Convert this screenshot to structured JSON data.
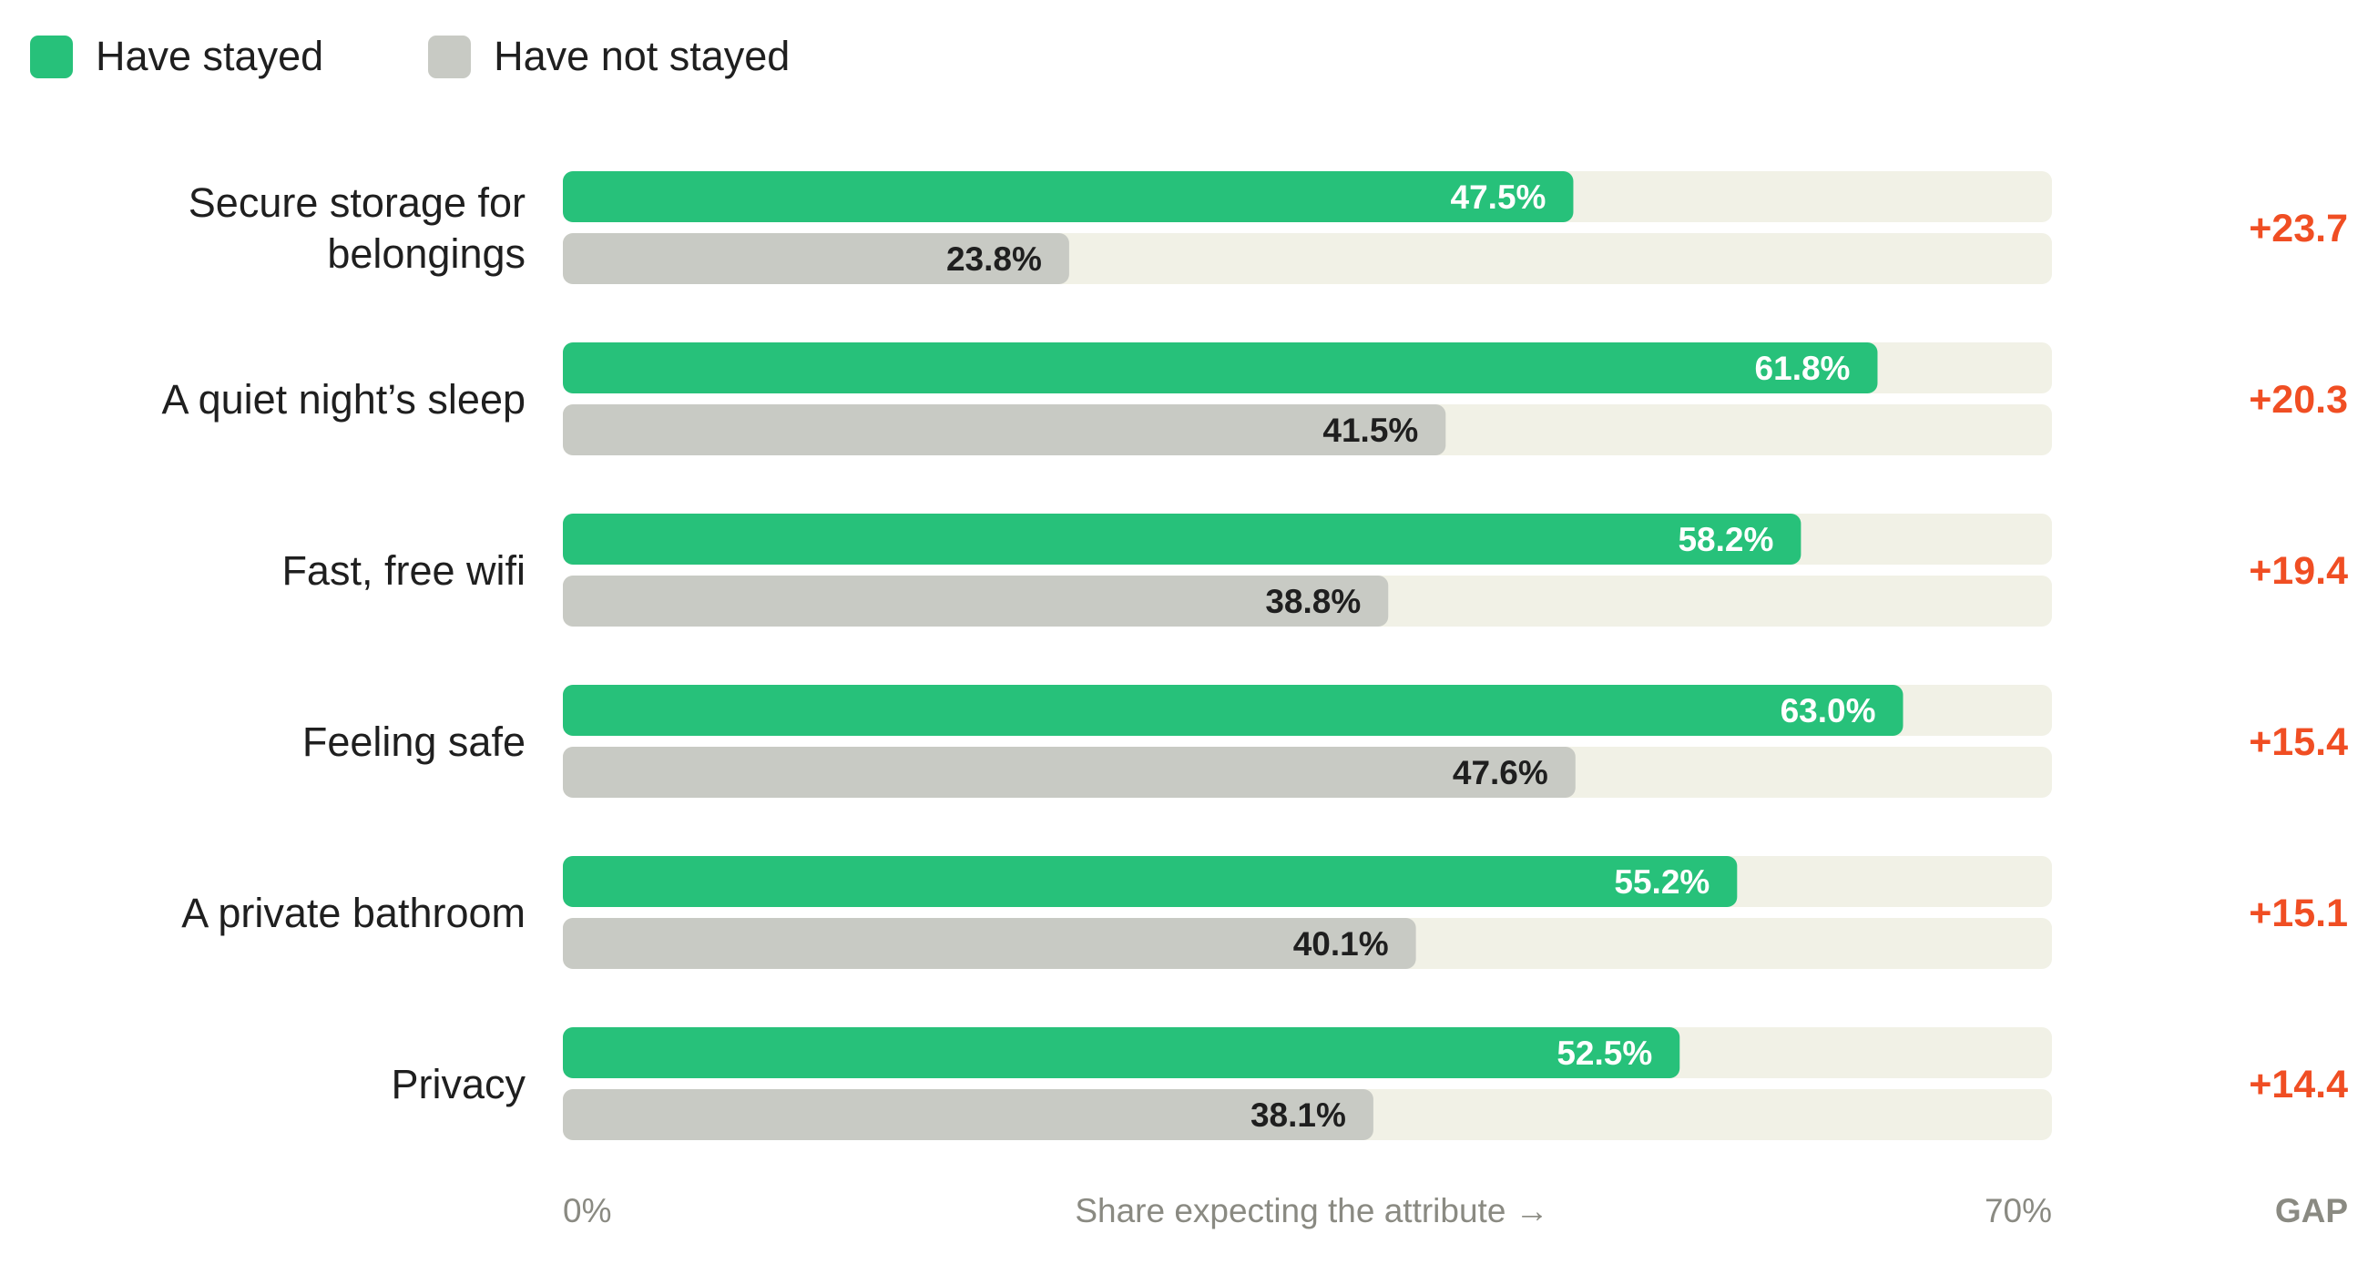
{
  "legend": {
    "items": [
      {
        "label": "Have stayed",
        "color": "#27c17a"
      },
      {
        "label": "Have not stayed",
        "color": "#c8cac4"
      }
    ]
  },
  "axis": {
    "min_label": "0%",
    "max_label": "70%",
    "title": "Share expecting the attribute →",
    "gap_header": "GAP"
  },
  "colors": {
    "stayed": "#27c17a",
    "not_stayed": "#c8cac4",
    "track": "#f1f1e6",
    "gap_text": "#f04e23",
    "stayed_label": "#ffffff",
    "not_stayed_label": "#1f1f1f"
  },
  "chart_data": {
    "type": "bar",
    "orientation": "horizontal",
    "xlim": [
      0,
      70
    ],
    "categories": [
      [
        "Secure storage for",
        "belongings"
      ],
      [
        "A quiet night’s sleep"
      ],
      [
        "Fast, free wifi"
      ],
      [
        "Feeling safe"
      ],
      [
        "A private bathroom"
      ],
      [
        "Privacy"
      ]
    ],
    "series": [
      {
        "name": "Have stayed",
        "values": [
          47.5,
          61.8,
          58.2,
          63.0,
          55.2,
          52.5
        ],
        "labels": [
          "47.5%",
          "61.8%",
          "58.2%",
          "63.0%",
          "55.2%",
          "52.5%"
        ]
      },
      {
        "name": "Have not stayed",
        "values": [
          23.8,
          41.5,
          38.8,
          47.6,
          40.1,
          38.1
        ],
        "labels": [
          "23.8%",
          "41.5%",
          "38.8%",
          "47.6%",
          "40.1%",
          "38.1%"
        ]
      }
    ],
    "gap": [
      "+23.7",
      "+20.3",
      "+19.4",
      "+15.4",
      "+15.1",
      "+14.4"
    ],
    "legend_position": "top-left",
    "grid": false
  }
}
